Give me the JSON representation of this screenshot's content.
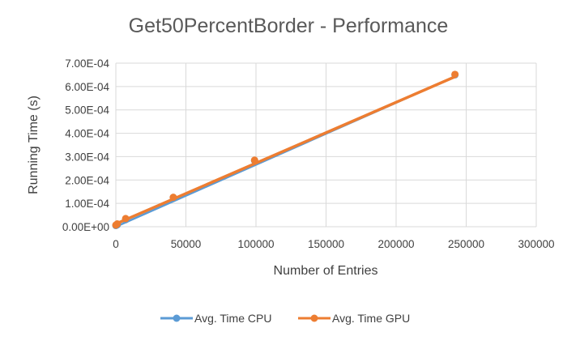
{
  "chart_data": {
    "type": "scatter",
    "title": "Get50PercentBorder - Performance",
    "xlabel": "Number of Entries",
    "ylabel": "Running Time (s)",
    "xlim": [
      0,
      300000
    ],
    "ylim": [
      0,
      0.0007
    ],
    "x_ticks": [
      0,
      50000,
      100000,
      150000,
      200000,
      250000,
      300000
    ],
    "x_tick_labels": [
      "0",
      "50000",
      "100000",
      "150000",
      "200000",
      "250000",
      "300000"
    ],
    "y_ticks": [
      0,
      0.0001,
      0.0002,
      0.0003,
      0.0004,
      0.0005,
      0.0006,
      0.0007
    ],
    "y_tick_labels": [
      "0.00E+00",
      "1.00E-04",
      "2.00E-04",
      "3.00E-04",
      "4.00E-04",
      "5.00E-04",
      "6.00E-04",
      "7.00E-04"
    ],
    "grid": true,
    "legend_position": "bottom",
    "series": [
      {
        "name": "Avg. Time CPU",
        "color": "#5b9bd5",
        "x": [
          0,
          1000,
          7000,
          41000,
          99000,
          242000
        ],
        "y": [
          5e-06,
          8e-06,
          3e-05,
          0.000125,
          0.000283,
          0.00065
        ],
        "trendline": {
          "x": [
            0,
            242000
          ],
          "y": [
            0.0,
            0.000642
          ]
        }
      },
      {
        "name": "Avg. Time GPU",
        "color": "#ed7d31",
        "x": [
          0,
          1000,
          7000,
          41000,
          99000,
          242000
        ],
        "y": [
          7e-06,
          1.2e-05,
          3.5e-05,
          0.000126,
          0.000285,
          0.000652
        ],
        "trendline": {
          "x": [
            0,
            242000
          ],
          "y": [
            1.2e-05,
            0.000642
          ]
        }
      }
    ]
  }
}
